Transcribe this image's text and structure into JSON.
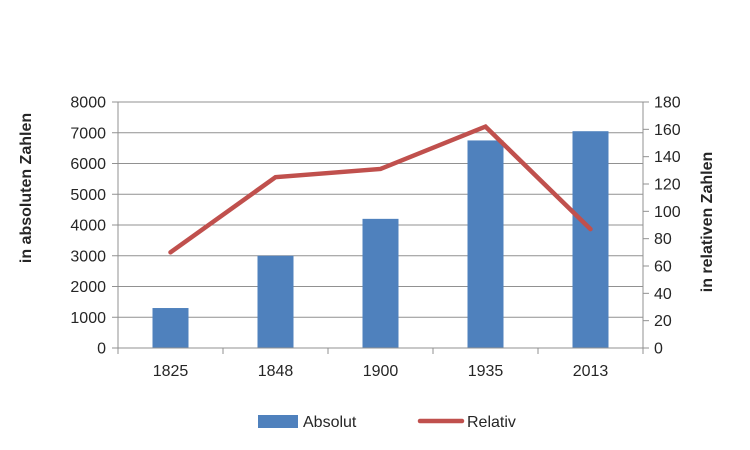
{
  "chart_data": {
    "type": "bar",
    "subtype": "bar-line-combo",
    "title": "",
    "categories": [
      "1825",
      "1848",
      "1900",
      "1935",
      "2013"
    ],
    "series": [
      {
        "name": "Absolut",
        "type": "bar",
        "axis": "left",
        "color": "#4F81BD",
        "values": [
          1300,
          3000,
          4200,
          6750,
          7050
        ]
      },
      {
        "name": "Relativ",
        "type": "line",
        "axis": "right",
        "color": "#C0504D",
        "values": [
          70,
          125,
          131,
          162,
          87
        ]
      }
    ],
    "left_axis": {
      "title": "in absoluten Zahlen",
      "min": 0,
      "max": 8000,
      "step": 1000,
      "ticks": [
        "0",
        "1000",
        "2000",
        "3000",
        "4000",
        "5000",
        "6000",
        "7000",
        "8000"
      ]
    },
    "right_axis": {
      "title": "in relativen Zahlen",
      "min": 0,
      "max": 180,
      "step": 20,
      "ticks": [
        "0",
        "20",
        "40",
        "60",
        "80",
        "100",
        "120",
        "140",
        "160",
        "180"
      ]
    },
    "x_axis": {
      "tick_labels": [
        "1825",
        "1848",
        "1900",
        "1935",
        "2013"
      ]
    },
    "legend": {
      "position": "bottom",
      "entries": [
        "Absolut",
        "Relativ"
      ]
    },
    "grid": true,
    "colors": {
      "grid": "#919191",
      "axis_line": "#919191",
      "text": "#262626",
      "background": "#FFFFFF"
    }
  }
}
